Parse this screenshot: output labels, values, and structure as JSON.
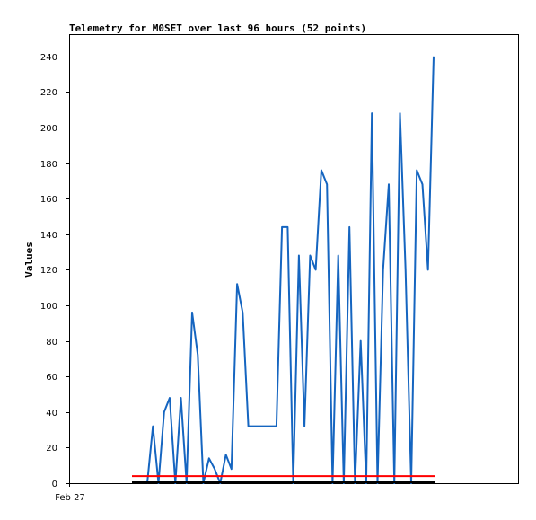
{
  "chart_data": {
    "type": "line",
    "title": "Telemetry for M0SET over last 96 hours (52 points)",
    "xlabel": "",
    "ylabel": "Values",
    "x_tick_labels": [
      "Feb 27"
    ],
    "ylim": [
      0,
      252
    ],
    "yticks": [
      0,
      20,
      40,
      60,
      80,
      100,
      120,
      140,
      160,
      180,
      200,
      220,
      240
    ],
    "grid": false,
    "series": [
      {
        "color": "#1565c0",
        "values": [
          0,
          32,
          0,
          40,
          48,
          0,
          48,
          0,
          96,
          72,
          0,
          14,
          8,
          0,
          16,
          8,
          112,
          96,
          32,
          32,
          32,
          32,
          32,
          32,
          144,
          144,
          0,
          128,
          32,
          128,
          120,
          176,
          168,
          0,
          128,
          0,
          144,
          0,
          80,
          0,
          208,
          0,
          120,
          168,
          0,
          208,
          120,
          0,
          176,
          168,
          120,
          240
        ]
      },
      {
        "color": "#ff0000",
        "values": [
          4,
          4
        ]
      },
      {
        "color": "#000000",
        "values": [
          0.5,
          0.5
        ]
      }
    ]
  }
}
